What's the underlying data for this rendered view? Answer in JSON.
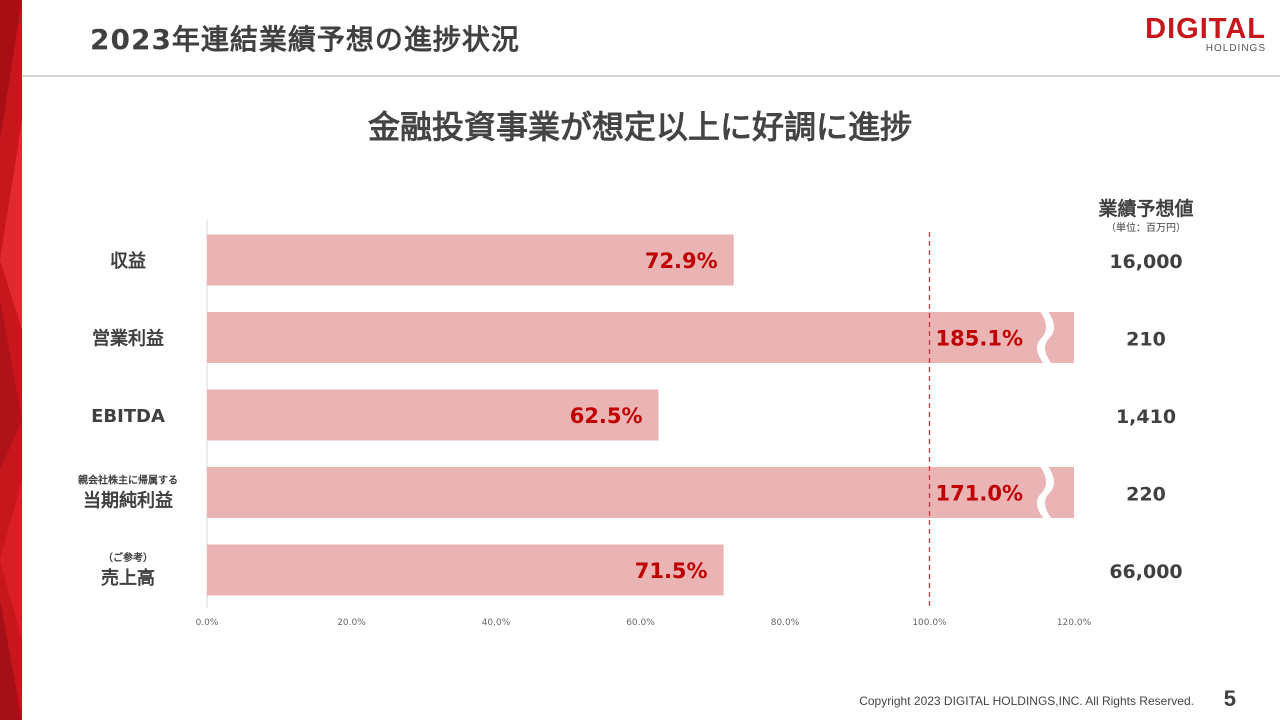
{
  "slide": {
    "title": "2023年連結業績予想の進捗状況",
    "headline": "金融投資事業が想定以上に好調に進捗",
    "logo": {
      "main": "DIGITAL",
      "sub": "HOLDINGS"
    },
    "forecast_header": "業績予想値",
    "forecast_unit": "（単位：百万円）",
    "copyright": "Copyright 2023 DIGITAL HOLDINGS,INC. All Rights Reserved.",
    "page_number": "5"
  },
  "colors": {
    "accent": "#c8161d",
    "bar_fill": "#eab3b4",
    "bar_label": "#c00000",
    "target_line": "#c0393e",
    "text": "#404040",
    "axis_text": "#666666"
  },
  "chart_data": {
    "type": "bar",
    "orientation": "horizontal",
    "categories": [
      {
        "label": "収益",
        "sublabel": ""
      },
      {
        "label": "営業利益",
        "sublabel": ""
      },
      {
        "label": "EBITDA",
        "sublabel": ""
      },
      {
        "label": "当期純利益",
        "sublabel": "親会社株主に帰属する"
      },
      {
        "label": "売上高",
        "sublabel": "（ご参考）"
      }
    ],
    "values": [
      72.9,
      185.1,
      62.5,
      171.0,
      71.5
    ],
    "value_labels": [
      "72.9%",
      "185.1%",
      "62.5%",
      "171.0%",
      "71.5%"
    ],
    "broken_axis": [
      false,
      true,
      false,
      true,
      false
    ],
    "forecast_values": [
      "16,000",
      "210",
      "1,410",
      "220",
      "66,000"
    ],
    "xlim": [
      0,
      120
    ],
    "x_ticks": [
      0,
      20,
      40,
      60,
      80,
      100,
      120
    ],
    "x_tick_labels": [
      "0.0%",
      "20.0%",
      "40.0%",
      "60.0%",
      "80.0%",
      "100.0%",
      "120.0%"
    ],
    "reference_line": {
      "value": 100,
      "style": "dashed"
    },
    "grid": false,
    "legend": "none"
  }
}
